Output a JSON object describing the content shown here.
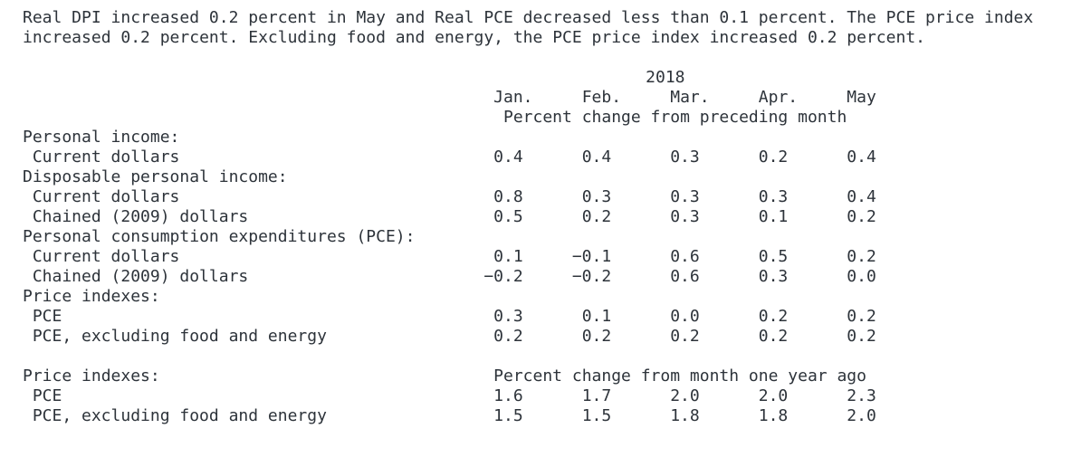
{
  "colors": {
    "text": "#2d333a",
    "background": "#ffffff"
  },
  "intro": {
    "text": "Real DPI increased 0.2 percent in May and Real PCE decreased less than 0.1 percent. The PCE price index increased 0.2 percent. Excluding food and energy, the PCE price index increased 0.2 percent."
  },
  "table": {
    "year": "2018",
    "months": [
      "Jan.",
      "Feb.",
      "Mar.",
      "Apr.",
      "May"
    ],
    "period_note": "Percent change from preceding month",
    "sections": [
      {
        "rows": [
          {
            "label": "Personal income:",
            "indent": 0
          },
          {
            "label": "Current dollars",
            "indent": 1,
            "values": [
              "0.4",
              "0.4",
              "0.3",
              "0.2",
              "0.4"
            ]
          },
          {
            "label": "Disposable personal income:",
            "indent": 0
          },
          {
            "label": "Current dollars",
            "indent": 1,
            "values": [
              "0.8",
              "0.3",
              "0.3",
              "0.3",
              "0.4"
            ]
          },
          {
            "label": "Chained (2009) dollars",
            "indent": 1,
            "values": [
              "0.5",
              "0.2",
              "0.3",
              "0.1",
              "0.2"
            ]
          },
          {
            "label": "Personal consumption expenditures (PCE):",
            "indent": 0
          },
          {
            "label": "Current dollars",
            "indent": 1,
            "values": [
              "0.1",
              "−0.1",
              "0.6",
              "0.5",
              "0.2"
            ]
          },
          {
            "label": "Chained (2009) dollars",
            "indent": 1,
            "values": [
              "−0.2",
              "−0.2",
              "0.6",
              "0.3",
              "0.0"
            ]
          },
          {
            "label": "Price indexes:",
            "indent": 0
          },
          {
            "label": "PCE",
            "indent": 1,
            "values": [
              "0.3",
              "0.1",
              "0.0",
              "0.2",
              "0.2"
            ]
          },
          {
            "label": "PCE, excluding food and energy",
            "indent": 1,
            "values": [
              "0.2",
              "0.2",
              "0.2",
              "0.2",
              "0.2"
            ]
          }
        ]
      },
      {
        "rows": [
          {
            "label": "Price indexes:",
            "indent": 0,
            "note": "Percent change from month one year ago"
          },
          {
            "label": "PCE",
            "indent": 1,
            "values": [
              "1.6",
              "1.7",
              "2.0",
              "2.0",
              "2.3"
            ]
          },
          {
            "label": "PCE, excluding food and energy",
            "indent": 1,
            "values": [
              "1.5",
              "1.5",
              "1.8",
              "1.8",
              "2.0"
            ]
          }
        ]
      }
    ]
  }
}
